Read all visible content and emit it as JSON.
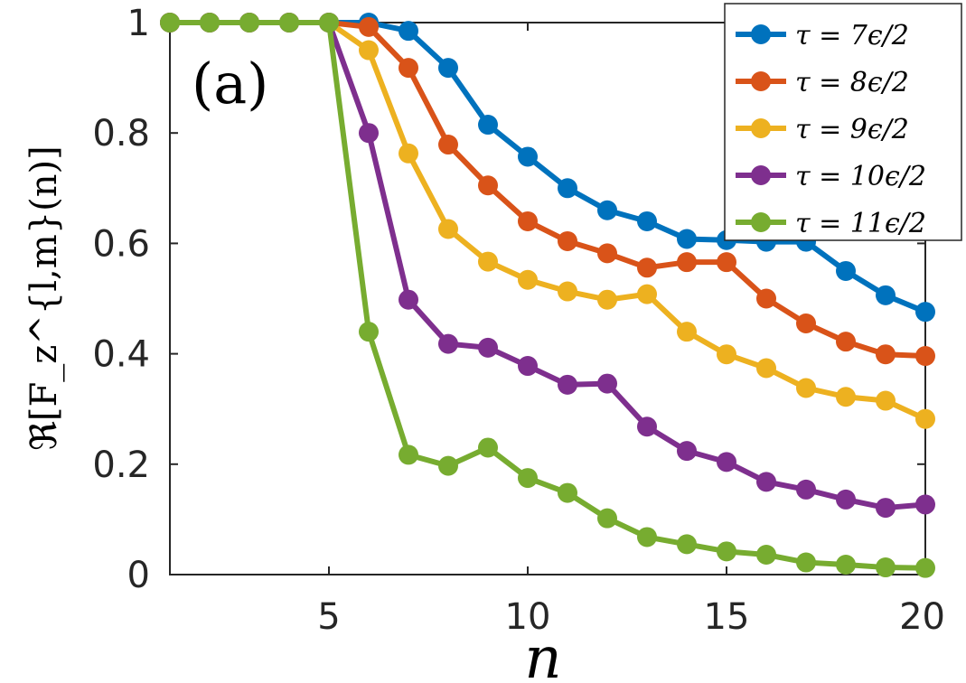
{
  "chart_data": {
    "type": "line",
    "panel_label": "(a)",
    "xlabel": "n",
    "ylabel": "ℜ[F_z^{l,m}(n)]",
    "xlim": [
      1,
      20
    ],
    "ylim": [
      0,
      1
    ],
    "xticks": [
      5,
      10,
      15,
      20
    ],
    "xtick_labels": [
      "5",
      "10",
      "15",
      "20"
    ],
    "yticks": [
      0,
      0.2,
      0.4,
      0.6,
      0.8,
      1
    ],
    "ytick_labels": [
      "0",
      "0.2",
      "0.4",
      "0.6",
      "0.8",
      "1"
    ],
    "legend_position": "top-right",
    "x": [
      1,
      2,
      3,
      4,
      5,
      6,
      7,
      8,
      9,
      10,
      11,
      12,
      13,
      14,
      15,
      16,
      17,
      18,
      19,
      20
    ],
    "series": [
      {
        "name": "τ = 7ϵ/2",
        "color": "#0072BD",
        "values": [
          1,
          1,
          1,
          1,
          1,
          1.0,
          0.985,
          0.918,
          0.815,
          0.757,
          0.7,
          0.66,
          0.64,
          0.608,
          0.606,
          0.603,
          0.603,
          0.55,
          0.506,
          0.476
        ]
      },
      {
        "name": "τ = 8ϵ/2",
        "color": "#D95319",
        "values": [
          1,
          1,
          1,
          1,
          1,
          0.992,
          0.918,
          0.779,
          0.705,
          0.64,
          0.604,
          0.582,
          0.556,
          0.566,
          0.566,
          0.5,
          0.455,
          0.422,
          0.399,
          0.396
        ]
      },
      {
        "name": "τ = 9ϵ/2",
        "color": "#EDB120",
        "values": [
          1,
          1,
          1,
          1,
          1,
          0.95,
          0.763,
          0.626,
          0.567,
          0.534,
          0.513,
          0.498,
          0.508,
          0.44,
          0.399,
          0.374,
          0.338,
          0.322,
          0.315,
          0.282
        ]
      },
      {
        "name": "τ = 10ϵ/2",
        "color": "#7E2F8E",
        "values": [
          1,
          1,
          1,
          1,
          1,
          0.8,
          0.498,
          0.418,
          0.411,
          0.378,
          0.344,
          0.346,
          0.268,
          0.224,
          0.204,
          0.168,
          0.154,
          0.136,
          0.121,
          0.127
        ]
      },
      {
        "name": "τ = 11ϵ/2",
        "color": "#77AC30",
        "values": [
          1,
          1,
          1,
          1,
          1,
          0.44,
          0.217,
          0.197,
          0.23,
          0.175,
          0.148,
          0.102,
          0.068,
          0.055,
          0.042,
          0.036,
          0.022,
          0.018,
          0.013,
          0.012
        ]
      }
    ]
  }
}
